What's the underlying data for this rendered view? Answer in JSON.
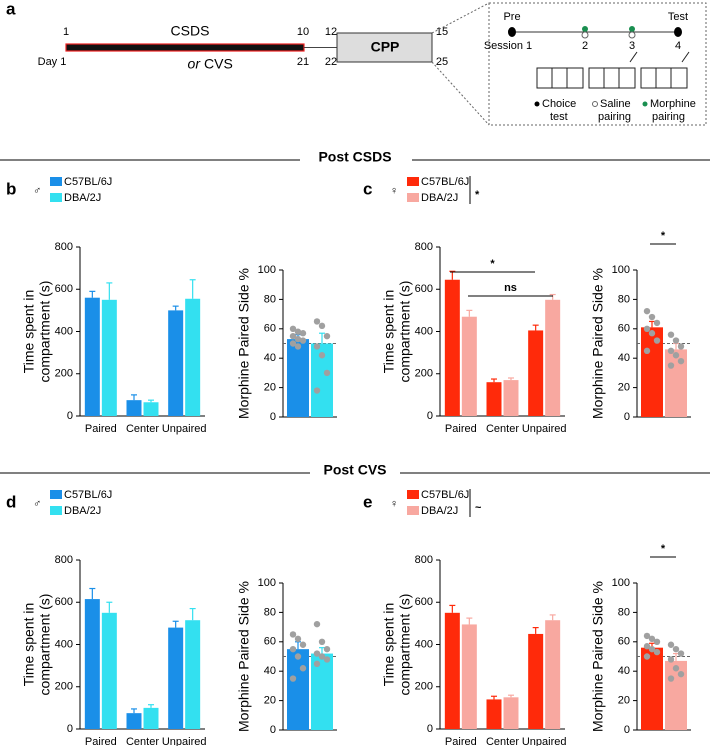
{
  "timeline": {
    "letter": "a",
    "top_ticks": [
      "1",
      "10",
      "12",
      "15"
    ],
    "bottom_ticks": [
      "Day 1",
      "21",
      "22",
      "25"
    ],
    "phase1": "CSDS",
    "or": "or",
    "phase1_alt": "CVS",
    "phase2": "CPP",
    "inset": {
      "pre": "Pre",
      "test": "Test",
      "sessions": [
        "Session 1",
        "2",
        "3",
        "4"
      ],
      "legend": [
        [
          "Choice",
          "test"
        ],
        [
          "Saline",
          "pairing"
        ],
        [
          "Morphine",
          "pairing"
        ]
      ]
    }
  },
  "sections": [
    "Post CSDS",
    "Post CVS"
  ],
  "panels": [
    {
      "letter": "b",
      "sex": "♂"
    },
    {
      "letter": "c",
      "sex": "♀",
      "note": "*"
    },
    {
      "letter": "d",
      "sex": "♂"
    },
    {
      "letter": "e",
      "sex": "♀",
      "note": "~"
    }
  ],
  "chart_data": [
    {
      "type": "bar",
      "ylabel": [
        "Time spent in",
        "compartment (s)"
      ],
      "categories": [
        "Paired",
        "Center",
        "Unpaired"
      ],
      "ylim": [
        0,
        800
      ],
      "yticks": [
        0,
        200,
        400,
        600,
        800
      ],
      "series": [
        {
          "name": "C57BL/6J",
          "color": "#1a8fe8",
          "values": [
            560,
            75,
            500
          ],
          "errors": [
            30,
            25,
            20
          ]
        },
        {
          "name": "DBA/2J",
          "color": "#33e0f0",
          "values": [
            550,
            65,
            555
          ],
          "errors": [
            80,
            10,
            90
          ]
        }
      ]
    },
    {
      "type": "bar",
      "ylabel": "Morphine Paired Side %",
      "ylim": [
        0,
        100
      ],
      "yticks": [
        0,
        20,
        40,
        60,
        80,
        100
      ],
      "refline": 50,
      "series": [
        {
          "color": "#1a8fe8",
          "values": [
            53
          ],
          "errors": [
            3
          ],
          "points": [
            60,
            58,
            57,
            55,
            53,
            52,
            50,
            48
          ]
        },
        {
          "color": "#33e0f0",
          "values": [
            50
          ],
          "errors": [
            7
          ],
          "points": [
            65,
            62,
            55,
            48,
            42,
            30,
            18
          ]
        }
      ]
    },
    {
      "type": "bar",
      "ylabel": [
        "Time spent in",
        "compartment (s)"
      ],
      "categories": [
        "Paired",
        "Center",
        "Unpaired"
      ],
      "ylim": [
        0,
        800
      ],
      "yticks": [
        0,
        200,
        400,
        600,
        800
      ],
      "annotations": [
        "*",
        "ns"
      ],
      "series": [
        {
          "name": "C57BL/6J",
          "color": "#ff2a0a",
          "values": [
            645,
            160,
            405
          ],
          "errors": [
            40,
            15,
            25
          ]
        },
        {
          "name": "DBA/2J",
          "color": "#f8a8a0",
          "values": [
            470,
            170,
            550
          ],
          "errors": [
            30,
            10,
            25
          ]
        }
      ]
    },
    {
      "type": "bar",
      "ylabel": "Morphine Paired Side %",
      "ylim": [
        0,
        100
      ],
      "yticks": [
        0,
        20,
        40,
        60,
        80,
        100
      ],
      "refline": 50,
      "annotations": [
        "*"
      ],
      "series": [
        {
          "color": "#ff2a0a",
          "values": [
            61
          ],
          "errors": [
            4
          ],
          "points": [
            72,
            68,
            64,
            60,
            57,
            52,
            45
          ]
        },
        {
          "color": "#f8a8a0",
          "values": [
            46
          ],
          "errors": [
            4
          ],
          "points": [
            56,
            52,
            48,
            45,
            42,
            38,
            35
          ]
        }
      ]
    },
    {
      "type": "bar",
      "ylabel": [
        "Time spent in",
        "compartment (s)"
      ],
      "categories": [
        "Paired",
        "Center",
        "Unpaired"
      ],
      "ylim": [
        0,
        800
      ],
      "yticks": [
        0,
        200,
        400,
        600,
        800
      ],
      "series": [
        {
          "name": "C57BL/6J",
          "color": "#1a8fe8",
          "values": [
            615,
            75,
            480
          ],
          "errors": [
            50,
            20,
            30
          ]
        },
        {
          "name": "DBA/2J",
          "color": "#33e0f0",
          "values": [
            550,
            100,
            515
          ],
          "errors": [
            50,
            15,
            55
          ]
        }
      ]
    },
    {
      "type": "bar",
      "ylabel": "Morphine Paired Side %",
      "ylim": [
        0,
        100
      ],
      "yticks": [
        0,
        20,
        40,
        60,
        80,
        100
      ],
      "refline": 50,
      "series": [
        {
          "color": "#1a8fe8",
          "values": [
            55
          ],
          "errors": [
            5
          ],
          "points": [
            65,
            62,
            58,
            55,
            50,
            42,
            35
          ]
        },
        {
          "color": "#33e0f0",
          "values": [
            52
          ],
          "errors": [
            4
          ],
          "points": [
            72,
            60,
            55,
            52,
            50,
            48,
            45
          ]
        }
      ]
    },
    {
      "type": "bar",
      "ylabel": [
        "Time spent in",
        "compartment (s)"
      ],
      "categories": [
        "Paired",
        "Center",
        "Unpaired"
      ],
      "ylim": [
        0,
        800
      ],
      "yticks": [
        0,
        200,
        400,
        600,
        800
      ],
      "series": [
        {
          "name": "C57BL/6J",
          "color": "#ff2a0a",
          "values": [
            550,
            140,
            450
          ],
          "errors": [
            35,
            15,
            30
          ]
        },
        {
          "name": "DBA/2J",
          "color": "#f8a8a0",
          "values": [
            495,
            150,
            515
          ],
          "errors": [
            30,
            10,
            25
          ]
        }
      ]
    },
    {
      "type": "bar",
      "ylabel": "Morphine Paired Side %",
      "ylim": [
        0,
        100
      ],
      "yticks": [
        0,
        20,
        40,
        60,
        80,
        100
      ],
      "refline": 50,
      "annotations": [
        "*"
      ],
      "series": [
        {
          "color": "#ff2a0a",
          "values": [
            56
          ],
          "errors": [
            3
          ],
          "points": [
            64,
            62,
            60,
            57,
            55,
            53,
            50
          ]
        },
        {
          "color": "#f8a8a0",
          "values": [
            47
          ],
          "errors": [
            5
          ],
          "points": [
            58,
            55,
            52,
            48,
            42,
            38,
            35
          ]
        }
      ]
    }
  ]
}
